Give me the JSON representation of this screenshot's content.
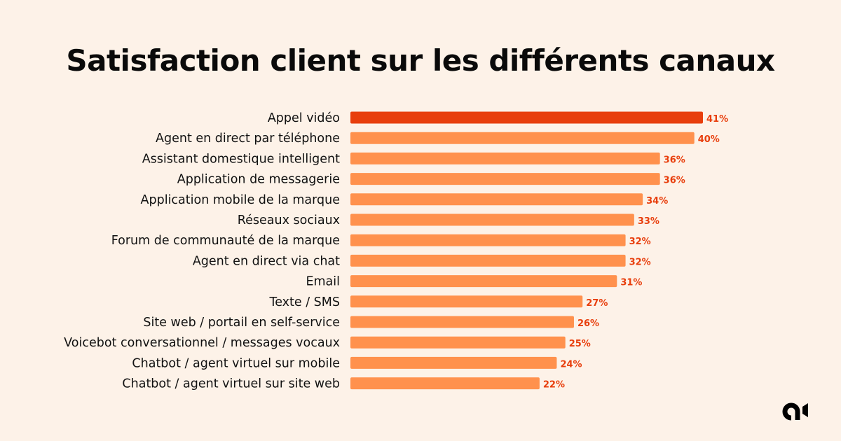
{
  "chart_data": {
    "type": "bar",
    "orientation": "horizontal",
    "title": "Satisfaction client sur les différents canaux",
    "categories": [
      "Appel vidéo",
      "Agent en direct par téléphone",
      "Assistant domestique intelligent",
      "Application de messagerie",
      "Application mobile de la marque",
      "Réseaux sociaux",
      "Forum de communauté de la marque",
      "Agent en direct via chat",
      "Email",
      "Texte / SMS",
      "Site web / portail en self-service",
      "Voicebot conversationnel / messages vocaux",
      "Chatbot / agent virtuel sur mobile",
      "Chatbot / agent virtuel sur site web"
    ],
    "values": [
      41,
      40,
      36,
      36,
      34,
      33,
      32,
      32,
      31,
      27,
      26,
      25,
      24,
      22
    ],
    "value_labels": [
      "41%",
      "40%",
      "36%",
      "36%",
      "34%",
      "33%",
      "32%",
      "32%",
      "31%",
      "27%",
      "26%",
      "25%",
      "24%",
      "22%"
    ],
    "xlim": [
      0,
      41
    ],
    "grid": false,
    "highlight_color": "#e83e0c",
    "bar_color": "#ff914d",
    "label_color": "#e83e0c"
  },
  "logo": {
    "icon": "brand-logo-icon"
  }
}
